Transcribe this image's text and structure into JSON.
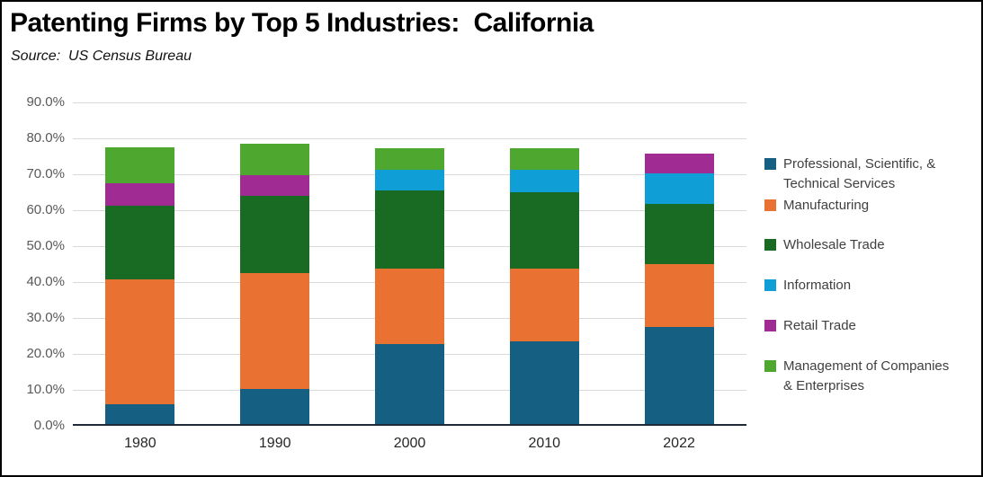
{
  "header": {
    "title": "Patenting Firms by Top 5 Industries:  California",
    "source": "Source:  US Census Bureau"
  },
  "chart_data": {
    "type": "bar",
    "stacked": true,
    "title": "Patenting Firms by Top 5 Industries:  California",
    "subtitle": "Source:  US Census Bureau",
    "categories": [
      "1980",
      "1990",
      "2000",
      "2010",
      "2022"
    ],
    "series": [
      {
        "name": "Professional, Scientific, & Technical Services",
        "legend_lines": [
          "Professional, Scientific, &",
          "Technical Services"
        ],
        "color": "#156082",
        "values": [
          5.5,
          9.7,
          22.2,
          22.9,
          27.0
        ]
      },
      {
        "name": "Manufacturing",
        "legend_lines": [
          "Manufacturing"
        ],
        "color": "#E97132",
        "values": [
          34.7,
          32.4,
          21.1,
          20.3,
          17.4
        ]
      },
      {
        "name": "Wholesale Trade",
        "legend_lines": [
          "Wholesale Trade"
        ],
        "color": "#196B24",
        "values": [
          20.5,
          21.4,
          21.7,
          21.2,
          16.9
        ]
      },
      {
        "name": "Information",
        "legend_lines": [
          "Information"
        ],
        "color": "#0F9ED5",
        "values": [
          0,
          0,
          5.8,
          6.4,
          8.4
        ]
      },
      {
        "name": "Retail Trade",
        "legend_lines": [
          "Retail Trade"
        ],
        "color": "#A02B93",
        "values": [
          6.3,
          5.8,
          0,
          0,
          5.5
        ]
      },
      {
        "name": "Management of Companies & Enterprises",
        "legend_lines": [
          "Management of Companies",
          "& Enterprises"
        ],
        "color": "#4EA72E",
        "values": [
          10.1,
          8.8,
          5.9,
          5.9,
          0
        ]
      }
    ],
    "bar_totals": [
      77.1,
      78.1,
      76.7,
      76.7,
      75.2
    ],
    "ylim": [
      0,
      90
    ],
    "ytick_step": 10,
    "y_tick_labels": [
      "0.0%",
      "10.0%",
      "20.0%",
      "30.0%",
      "40.0%",
      "50.0%",
      "60.0%",
      "70.0%",
      "80.0%",
      "90.0%"
    ],
    "grid": "horizontal",
    "legend_position": "right"
  },
  "style_colors": {
    "gridline": "#D9D9D9",
    "axis_line": "#1E2A38",
    "y_tick_label": "#595959",
    "x_tick_label": "#262626",
    "legend_text": "#404040",
    "title": "#000000",
    "frame_border": "#000000",
    "background": "#FFFFFF"
  }
}
